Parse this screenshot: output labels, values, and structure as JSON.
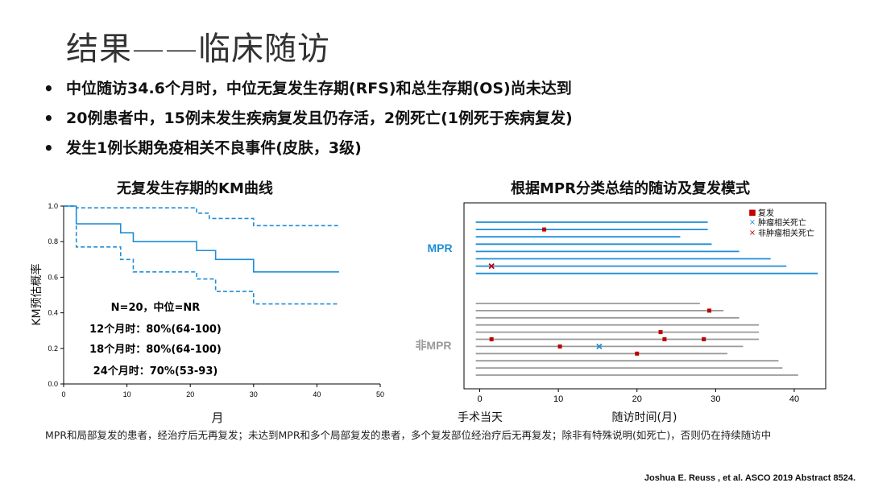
{
  "slide": {
    "title": "结果——临床随访",
    "bullets": [
      "中位随访34.6个月时，中位无复发生存期(RFS)和总生存期(OS)尚未达到",
      "20例患者中，15例未发生疾病复发且仍存活，2例死亡(1例死于疾病复发)",
      "发生1例长期免疫相关不良事件(皮肤，3级)"
    ],
    "bullet_char": "•",
    "footnote": "MPR和局部复发的患者，经治疗后无再复发；未达到MPR和多个局部复发的患者，多个复发部位经治疗后无再复发；除非有特殊说明(如死亡)，否则仍在持续随访中",
    "citation": "Joshua E. Reuss , et al.  ASCO 2019 Abstract 8524."
  },
  "chart_data": [
    {
      "type": "line",
      "title": "无复发生存期的KM曲线",
      "xlabel": "月",
      "ylabel": "KM预估概率",
      "xlim": [
        0,
        50
      ],
      "ylim": [
        0,
        1.0
      ],
      "xticks": [
        "0",
        "10",
        "20",
        "30",
        "40",
        "50"
      ],
      "yticks": [
        "0.0",
        "0.2",
        "0.4",
        "0.6",
        "0.8",
        "1.0"
      ],
      "color": "#1f8dd6",
      "series": [
        {
          "style": "solid",
          "x": [
            0,
            2,
            2,
            9,
            9,
            11,
            11,
            21,
            21,
            24,
            24,
            30,
            30,
            43.5
          ],
          "y": [
            1.0,
            1.0,
            0.9,
            0.9,
            0.85,
            0.85,
            0.8,
            0.8,
            0.75,
            0.75,
            0.7,
            0.7,
            0.63,
            0.63
          ]
        },
        {
          "style": "dashed",
          "x": [
            0,
            2,
            2,
            21,
            21,
            23,
            23,
            30,
            30,
            43.5
          ],
          "y": [
            1.0,
            1.0,
            0.99,
            0.99,
            0.96,
            0.96,
            0.93,
            0.93,
            0.89,
            0.89
          ]
        },
        {
          "style": "dashed",
          "x": [
            0,
            2,
            2,
            9,
            9,
            11,
            11,
            21,
            21,
            24,
            24,
            30,
            30,
            43.5
          ],
          "y": [
            1.0,
            1.0,
            0.77,
            0.77,
            0.7,
            0.7,
            0.63,
            0.63,
            0.59,
            0.59,
            0.52,
            0.52,
            0.45,
            0.45
          ]
        }
      ],
      "annotations": [
        "N=20，中位=NR",
        "12个月时：80%(64-100)",
        "18个月时：80%(64-100)",
        "24个月时：70%(53-93)"
      ]
    },
    {
      "type": "swimmer",
      "title": "根据MPR分类总结的随访及复发模式",
      "xlabel": "随访时间(月)",
      "xlabel_left": "手术当天",
      "xlim": [
        -2,
        44
      ],
      "xticks": [
        "0",
        "10",
        "20",
        "30",
        "40"
      ],
      "groups": [
        {
          "name": "MPR",
          "color": "#1f8dd6",
          "lanes": [
            29,
            29,
            25.5,
            29.5,
            33,
            37,
            39,
            43
          ]
        },
        {
          "name": "非MPR",
          "color": "#999999",
          "lanes": [
            28,
            31,
            33,
            35.5,
            35.5,
            35.5,
            33.5,
            31.5,
            38,
            38.5,
            40.5
          ]
        }
      ],
      "events": [
        {
          "group": 0,
          "lane": 1,
          "x": 8.2,
          "type": "recurrence"
        },
        {
          "group": 0,
          "lane": 6,
          "x": 1.5,
          "type": "non_tumor_death"
        },
        {
          "group": 1,
          "lane": 1,
          "x": 29.2,
          "type": "recurrence"
        },
        {
          "group": 1,
          "lane": 4,
          "x": 23,
          "type": "recurrence"
        },
        {
          "group": 1,
          "lane": 5,
          "x": 1.5,
          "type": "recurrence"
        },
        {
          "group": 1,
          "lane": 5,
          "x": 23.5,
          "type": "recurrence"
        },
        {
          "group": 1,
          "lane": 5,
          "x": 28.5,
          "type": "recurrence"
        },
        {
          "group": 1,
          "lane": 6,
          "x": 10.2,
          "type": "recurrence"
        },
        {
          "group": 1,
          "lane": 6,
          "x": 15.2,
          "type": "tumor_death"
        },
        {
          "group": 1,
          "lane": 7,
          "x": 20,
          "type": "recurrence"
        }
      ],
      "legend": {
        "placement": "top-right",
        "items": [
          {
            "key": "recurrence",
            "label": "复发",
            "symbol": "■",
            "color": "#c00000"
          },
          {
            "key": "tumor_death",
            "label": "肿瘤相关死亡",
            "symbol": "×",
            "color": "#1f8dd6"
          },
          {
            "key": "non_tumor_death",
            "label": "非肿瘤相关死亡",
            "symbol": "×",
            "color": "#c00000"
          }
        ]
      }
    }
  ]
}
